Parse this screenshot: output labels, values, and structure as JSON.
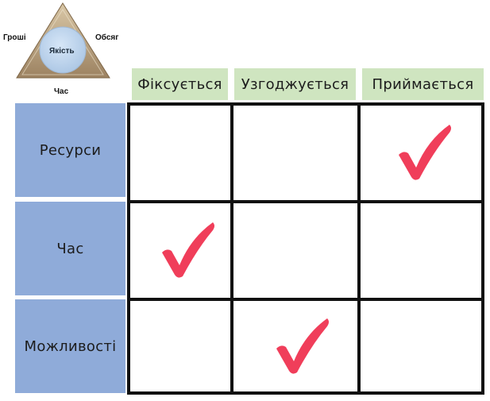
{
  "triangle": {
    "left_label": "Гроші",
    "right_label": "Обсяг",
    "bottom_label": "Час",
    "center_label": "Якість"
  },
  "columns": [
    "Фіксується",
    "Узгоджується",
    "Приймається"
  ],
  "rows": [
    {
      "label": "Ресурси",
      "checked_column": "Приймається"
    },
    {
      "label": "Час",
      "checked_column": "Фіксується"
    },
    {
      "label": "Можливості",
      "checked_column": "Узгоджується"
    }
  ],
  "colors": {
    "column_header_bg": "#cfe5c0",
    "row_header_bg": "#8fabd9",
    "check_mark": "#f03e5a",
    "grid_border": "#111111"
  },
  "icons": {
    "check": "check-mark-icon"
  }
}
